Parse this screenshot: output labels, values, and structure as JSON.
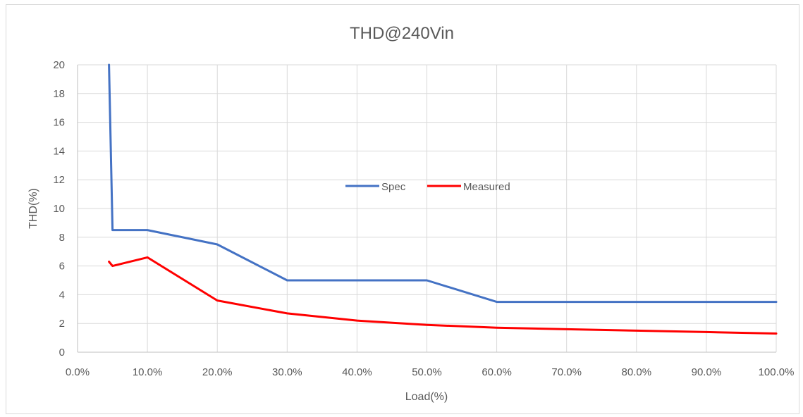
{
  "chart_data": {
    "type": "line",
    "title": "THD@240Vin",
    "xlabel": "Load(%)",
    "ylabel": "THD(%)",
    "xlim": [
      0,
      100
    ],
    "ylim": [
      0,
      20
    ],
    "x_ticks": [
      "0.0%",
      "10.0%",
      "20.0%",
      "30.0%",
      "40.0%",
      "50.0%",
      "60.0%",
      "70.0%",
      "80.0%",
      "90.0%",
      "100.0%"
    ],
    "y_ticks": [
      "0",
      "2",
      "4",
      "6",
      "8",
      "10",
      "12",
      "14",
      "16",
      "18",
      "20"
    ],
    "grid": true,
    "legend": "center",
    "series": [
      {
        "name": "Spec",
        "color": "#4472c4",
        "points": [
          [
            4.5,
            20
          ],
          [
            5,
            8.5
          ],
          [
            10,
            8.5
          ],
          [
            20,
            7.5
          ],
          [
            30,
            5
          ],
          [
            50,
            5
          ],
          [
            60,
            3.5
          ],
          [
            100,
            3.5
          ]
        ]
      },
      {
        "name": "Measured",
        "color": "#ff0000",
        "points": [
          [
            4.5,
            6.3
          ],
          [
            5,
            6.0
          ],
          [
            10,
            6.6
          ],
          [
            20,
            3.6
          ],
          [
            30,
            2.7
          ],
          [
            40,
            2.2
          ],
          [
            50,
            1.9
          ],
          [
            60,
            1.7
          ],
          [
            70,
            1.6
          ],
          [
            80,
            1.5
          ],
          [
            90,
            1.4
          ],
          [
            100,
            1.3
          ]
        ]
      }
    ]
  }
}
